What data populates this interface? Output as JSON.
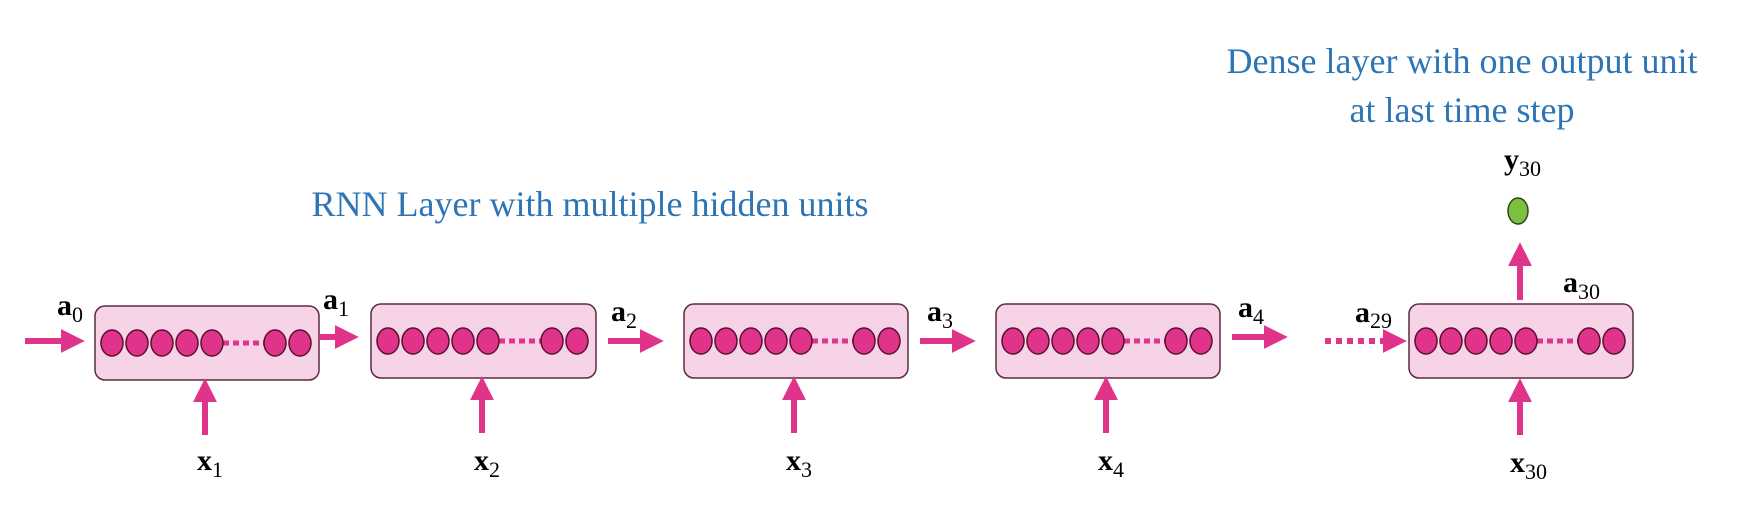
{
  "headings": {
    "dense": [
      "Dense layer with one output unit",
      "at last time step"
    ],
    "rnn": "RNN Layer with multiple hidden units"
  },
  "labels": {
    "a0": {
      "base": "a",
      "sub": "0"
    },
    "a1": {
      "base": "a",
      "sub": "1"
    },
    "a2": {
      "base": "a",
      "sub": "2"
    },
    "a3": {
      "base": "a",
      "sub": "3"
    },
    "a4": {
      "base": "a",
      "sub": "4"
    },
    "a29": {
      "base": "a",
      "sub": "29"
    },
    "a30": {
      "base": "a",
      "sub": "30"
    },
    "x1": {
      "base": "x",
      "sub": "1"
    },
    "x2": {
      "base": "x",
      "sub": "2"
    },
    "x3": {
      "base": "x",
      "sub": "3"
    },
    "x4": {
      "base": "x",
      "sub": "4"
    },
    "x30": {
      "base": "x",
      "sub": "30"
    },
    "y30": {
      "base": "y",
      "sub": "30"
    }
  },
  "colors": {
    "heading": "#2E75B6",
    "arrow": "#E0338A",
    "cell_fill": "#F6D3E6",
    "cell_border": "#5A2A40",
    "unit_fill": "#E0338A",
    "unit_border": "#5A1030",
    "output_unit": "#7DBF3F"
  },
  "cells": [
    {
      "name": "rnn-cell-1"
    },
    {
      "name": "rnn-cell-2"
    },
    {
      "name": "rnn-cell-3"
    },
    {
      "name": "rnn-cell-4"
    },
    {
      "name": "rnn-cell-30"
    }
  ]
}
